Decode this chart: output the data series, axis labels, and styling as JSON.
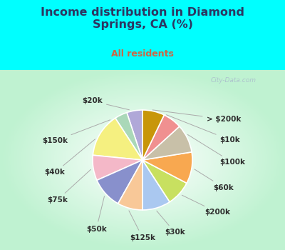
{
  "title": "Income distribution in Diamond\nSprings, CA (%)",
  "subtitle": "All residents",
  "title_color": "#2d3561",
  "subtitle_color": "#cc6644",
  "bg_cyan": "#00ffff",
  "labels": [
    "> $200k",
    "$10k",
    "$100k",
    "$60k",
    "$200k",
    "$30k",
    "$125k",
    "$50k",
    "$75k",
    "$40k",
    "$150k",
    "$20k"
  ],
  "values": [
    5,
    4,
    14,
    8,
    10,
    8,
    9,
    8,
    10,
    9,
    6,
    7
  ],
  "colors": [
    "#b0a8d8",
    "#aad8b8",
    "#f5f080",
    "#f4b8c8",
    "#8890cc",
    "#f8c898",
    "#aac8f0",
    "#c8e060",
    "#f8a850",
    "#c8c0a8",
    "#f09090",
    "#c8960a"
  ],
  "start_angle": 90,
  "wedge_edge_color": "white",
  "wedge_linewidth": 1.2,
  "label_fontsize": 7.5,
  "label_color": "#2d2d2d"
}
